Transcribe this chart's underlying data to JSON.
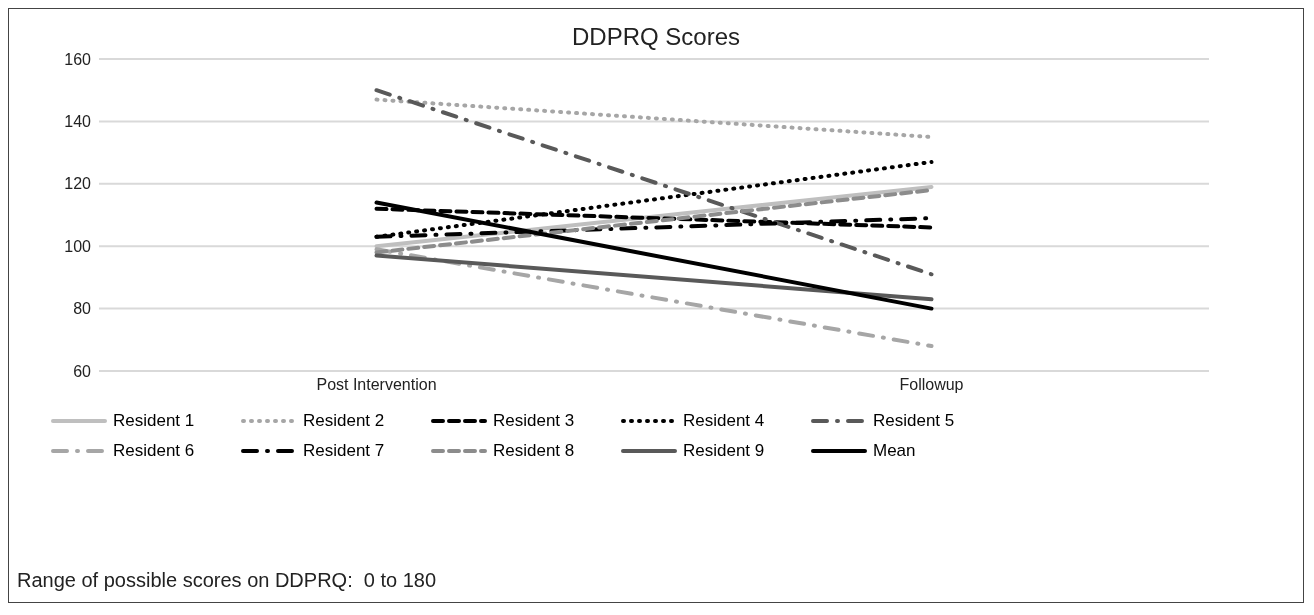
{
  "chart_data": {
    "type": "line",
    "title": "DDPRQ Scores",
    "categories": [
      "Post Intervention",
      "Followup"
    ],
    "series": [
      {
        "name": "Resident 1",
        "color": "#bfbfbf",
        "line_style": "solid",
        "values": [
          100,
          119
        ]
      },
      {
        "name": "Resident 2",
        "color": "#a6a6a6",
        "line_style": "dotted",
        "values": [
          147,
          135
        ]
      },
      {
        "name": "Resident 3",
        "color": "#000000",
        "line_style": "dashed",
        "values": [
          112,
          106
        ]
      },
      {
        "name": "Resident 4",
        "color": "#000000",
        "line_style": "dotted",
        "values": [
          103,
          127
        ]
      },
      {
        "name": "Resident 5",
        "color": "#595959",
        "line_style": "dashdot",
        "values": [
          150,
          91
        ]
      },
      {
        "name": "Resident 6",
        "color": "#a6a6a6",
        "line_style": "dashdot",
        "values": [
          99,
          68
        ]
      },
      {
        "name": "Resident 7",
        "color": "#000000",
        "line_style": "dashdot",
        "values": [
          103,
          109
        ]
      },
      {
        "name": "Resident 8",
        "color": "#8c8c8c",
        "line_style": "dashed",
        "values": [
          98,
          118
        ]
      },
      {
        "name": "Resident 9",
        "color": "#595959",
        "line_style": "solid",
        "values": [
          97,
          83
        ]
      },
      {
        "name": "Mean",
        "color": "#000000",
        "line_style": "solid",
        "values": [
          114,
          80
        ]
      }
    ],
    "ylim": [
      60,
      160
    ],
    "yticks": [
      60,
      80,
      100,
      120,
      140,
      160
    ],
    "grid": "y",
    "legend": "bottom",
    "marker": "none",
    "annotations": [
      "Range of possible scores on DDPRQ:  0 to 180"
    ]
  }
}
